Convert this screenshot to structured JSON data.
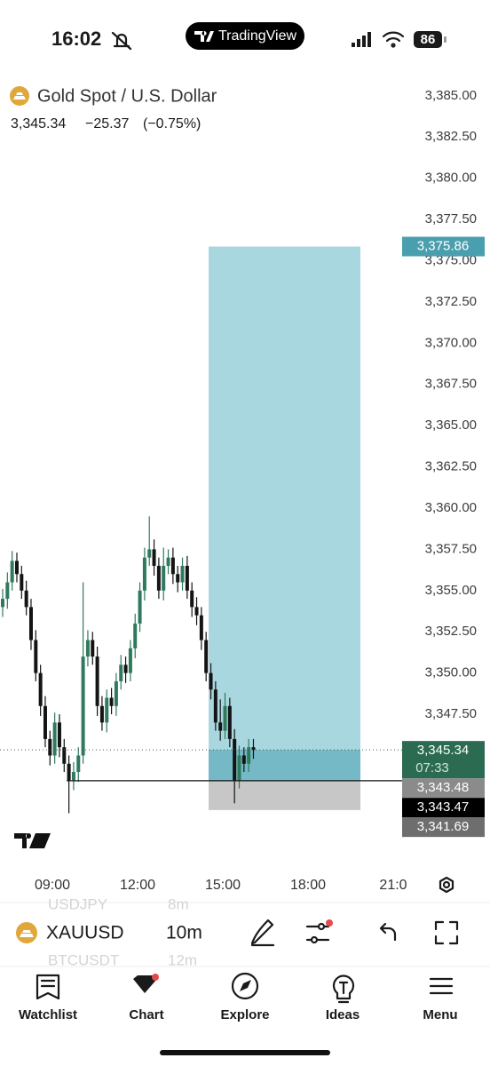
{
  "status_bar": {
    "time": "16:02",
    "app": "TradingView",
    "battery": "86"
  },
  "header": {
    "symbol_name": "Gold Spot / U.S. Dollar",
    "price": "3,345.34",
    "change": "−25.37",
    "change_pct": "(−0.75%)"
  },
  "chart_data": {
    "type": "candlestick",
    "open": [
      3354.0,
      3354.5,
      3355.5,
      3356.8,
      3356.0,
      3355.0,
      3354.0,
      3352.0,
      3350.0,
      3348.0,
      3346.0,
      3345.0,
      3347.0,
      3345.5,
      3344.5,
      3343.5,
      3344.0,
      3345.0,
      3351.0,
      3352.0,
      3351.0,
      3348.0,
      3347.0,
      3348.5,
      3348.0,
      3349.5,
      3350.5,
      3350.0,
      3351.5,
      3353.0,
      3355.0,
      3357.0,
      3357.5,
      3356.5,
      3355.0,
      3356.5,
      3357.0,
      3356.0,
      3355.5,
      3356.5,
      3355.0,
      3354.0,
      3353.5,
      3352.0,
      3350.0,
      3349.0,
      3347.0,
      3346.5,
      3348.0,
      3346.0,
      3343.5,
      3345.0,
      3344.5,
      3345.5
    ],
    "high": [
      3355.1,
      3356.1,
      3357.4,
      3357.3,
      3356.5,
      3355.6,
      3354.5,
      3352.6,
      3350.5,
      3348.6,
      3346.5,
      3347.6,
      3347.5,
      3346.0,
      3345.0,
      3344.6,
      3345.5,
      3355.5,
      3352.6,
      3352.5,
      3351.6,
      3348.6,
      3349.0,
      3349.1,
      3350.0,
      3351.1,
      3351.0,
      3352.0,
      3353.6,
      3355.5,
      3357.6,
      3359.5,
      3358.1,
      3357.0,
      3357.6,
      3357.5,
      3357.6,
      3356.5,
      3357.0,
      3357.1,
      3355.5,
      3354.6,
      3354.0,
      3352.5,
      3350.6,
      3349.5,
      3348.4,
      3348.8,
      3348.5,
      3346.6,
      3345.6,
      3345.5,
      3346.0,
      3346.0
    ],
    "low": [
      3353.4,
      3353.9,
      3355.0,
      3355.5,
      3354.5,
      3353.5,
      3351.4,
      3349.5,
      3347.4,
      3345.5,
      3344.4,
      3344.5,
      3344.9,
      3344.0,
      3341.5,
      3342.9,
      3343.4,
      3344.5,
      3350.4,
      3350.5,
      3347.4,
      3346.5,
      3346.4,
      3347.5,
      3347.4,
      3349.0,
      3349.4,
      3349.5,
      3350.9,
      3352.5,
      3354.4,
      3356.5,
      3355.9,
      3354.5,
      3354.4,
      3356.0,
      3355.4,
      3354.9,
      3355.0,
      3354.5,
      3353.4,
      3352.9,
      3351.4,
      3349.5,
      3348.4,
      3346.5,
      3345.9,
      3346.0,
      3345.5,
      3342.1,
      3343.0,
      3344.0,
      3344.0,
      3344.8
    ],
    "close": [
      3354.5,
      3355.5,
      3356.8,
      3356.0,
      3355.0,
      3354.0,
      3352.0,
      3350.0,
      3348.0,
      3346.0,
      3345.0,
      3347.0,
      3345.5,
      3344.5,
      3343.5,
      3344.0,
      3345.0,
      3351.0,
      3352.0,
      3351.0,
      3348.0,
      3347.0,
      3348.5,
      3348.0,
      3349.5,
      3350.5,
      3350.0,
      3351.5,
      3353.0,
      3355.0,
      3357.0,
      3357.5,
      3356.5,
      3355.0,
      3356.5,
      3357.0,
      3356.0,
      3355.5,
      3356.5,
      3355.0,
      3354.0,
      3353.5,
      3352.0,
      3350.0,
      3349.0,
      3347.0,
      3346.5,
      3348.0,
      3346.0,
      3343.5,
      3345.0,
      3344.5,
      3345.5,
      3345.34
    ],
    "up_color": "#2f7a5d",
    "down_color": "#141414",
    "ylim": [
      3339.1,
      3386.5
    ],
    "yticks": [
      {
        "value": 3385,
        "label": "3,385.00"
      },
      {
        "value": 3382.5,
        "label": "3,382.50"
      },
      {
        "value": 3380,
        "label": "3,380.00"
      },
      {
        "value": 3377.5,
        "label": "3,377.50"
      },
      {
        "value": 3375,
        "label": "3,375.00"
      },
      {
        "value": 3372.5,
        "label": "3,372.50"
      },
      {
        "value": 3370,
        "label": "3,370.00"
      },
      {
        "value": 3367.5,
        "label": "3,367.50"
      },
      {
        "value": 3365,
        "label": "3,365.00"
      },
      {
        "value": 3362.5,
        "label": "3,362.50"
      },
      {
        "value": 3360,
        "label": "3,360.00"
      },
      {
        "value": 3357.5,
        "label": "3,357.50"
      },
      {
        "value": 3355,
        "label": "3,355.00"
      },
      {
        "value": 3352.5,
        "label": "3,352.50"
      },
      {
        "value": 3350,
        "label": "3,350.00"
      },
      {
        "value": 3347.5,
        "label": "3,347.50"
      }
    ],
    "time_labels": [
      "09:00",
      "12:00",
      "15:00",
      "18:00",
      "21:0"
    ],
    "last_price": {
      "value": 3345.34,
      "label": "3,345.34"
    },
    "countdown": "07:33",
    "position": [
      {
        "value": 3375.86,
        "label": "3,375.86"
      },
      {
        "value": 3343.48,
        "label": "3,343.48"
      },
      {
        "value": 3341.69,
        "label": "3,341.69"
      }
    ],
    "line_level": {
      "value": 3343.47,
      "label": "3,343.47"
    }
  },
  "toolbar": {
    "symbol": "XAUUSD",
    "interval": "10m",
    "peek_above": [
      "USDJPY",
      "8m"
    ],
    "peek_below": [
      "BTCUSDT",
      "12m"
    ]
  },
  "tab_bar": [
    "Watchlist",
    "Chart",
    "Explore",
    "Ideas",
    "Menu"
  ]
}
